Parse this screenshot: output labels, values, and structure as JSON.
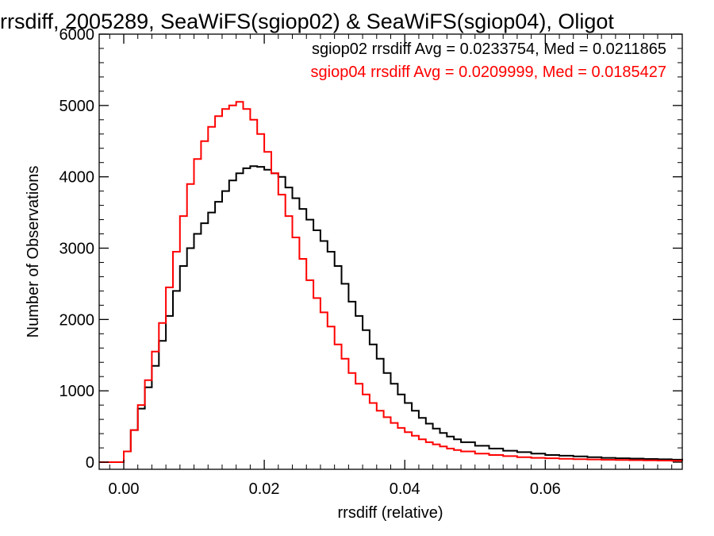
{
  "chart_data": {
    "type": "line",
    "title": "rrsdiff, 2005289, SeaWiFS(sgiop02) & SeaWiFS(sgiop04), Oligot",
    "xlabel": "rrsdiff (relative)",
    "ylabel": "Number of Observations",
    "xlim": [
      -0.0035,
      0.0795
    ],
    "ylim": [
      -100,
      6000
    ],
    "xticks": [
      0.0,
      0.02,
      0.04,
      0.06
    ],
    "xtick_labels": [
      "0.00",
      "0.02",
      "0.04",
      "0.06"
    ],
    "yticks": [
      0,
      1000,
      2000,
      3000,
      4000,
      5000,
      6000
    ],
    "ytick_labels": [
      "0",
      "1000",
      "2000",
      "3000",
      "4000",
      "5000",
      "6000"
    ],
    "grid": false,
    "legend_position": "top-right",
    "legend": [
      "sgiop02 rrsdiff Avg = 0.0233754, Med = 0.0211865",
      "sgiop04 rrsdiff Avg = 0.0209999, Med = 0.0185427"
    ],
    "series": [
      {
        "name": "sgiop02",
        "color": "#000000",
        "x": [
          -0.0035,
          -0.0005,
          0.0,
          0.001,
          0.002,
          0.003,
          0.004,
          0.005,
          0.006,
          0.007,
          0.008,
          0.009,
          0.01,
          0.011,
          0.012,
          0.013,
          0.014,
          0.015,
          0.016,
          0.017,
          0.018,
          0.019,
          0.02,
          0.021,
          0.022,
          0.023,
          0.024,
          0.025,
          0.026,
          0.027,
          0.028,
          0.029,
          0.03,
          0.031,
          0.032,
          0.033,
          0.034,
          0.035,
          0.036,
          0.037,
          0.038,
          0.039,
          0.04,
          0.041,
          0.042,
          0.043,
          0.044,
          0.045,
          0.046,
          0.047,
          0.048,
          0.05,
          0.052,
          0.054,
          0.056,
          0.058,
          0.06,
          0.062,
          0.064,
          0.066,
          0.068,
          0.07,
          0.072,
          0.074,
          0.076,
          0.078,
          0.0795
        ],
        "y": [
          0,
          0,
          150,
          450,
          750,
          1050,
          1350,
          1700,
          2050,
          2400,
          2750,
          3000,
          3200,
          3350,
          3500,
          3650,
          3800,
          3950,
          4050,
          4120,
          4150,
          4140,
          4100,
          4050,
          4000,
          3850,
          3700,
          3550,
          3400,
          3250,
          3100,
          2950,
          2750,
          2500,
          2250,
          2050,
          1850,
          1650,
          1450,
          1250,
          1100,
          950,
          830,
          720,
          620,
          540,
          470,
          410,
          360,
          320,
          280,
          230,
          190,
          160,
          140,
          120,
          100,
          90,
          80,
          70,
          60,
          55,
          50,
          45,
          40,
          35,
          30
        ]
      },
      {
        "name": "sgiop04",
        "color": "#ff0000",
        "x": [
          -0.0035,
          -0.0005,
          0.0,
          0.001,
          0.002,
          0.003,
          0.004,
          0.005,
          0.006,
          0.007,
          0.008,
          0.009,
          0.01,
          0.011,
          0.012,
          0.013,
          0.014,
          0.015,
          0.016,
          0.017,
          0.018,
          0.019,
          0.02,
          0.021,
          0.022,
          0.023,
          0.024,
          0.025,
          0.026,
          0.027,
          0.028,
          0.029,
          0.03,
          0.031,
          0.032,
          0.033,
          0.034,
          0.035,
          0.036,
          0.037,
          0.038,
          0.039,
          0.04,
          0.041,
          0.042,
          0.043,
          0.044,
          0.045,
          0.046,
          0.047,
          0.048,
          0.05,
          0.052,
          0.054,
          0.056,
          0.058,
          0.06,
          0.062,
          0.064,
          0.066,
          0.068,
          0.07,
          0.072,
          0.074,
          0.076,
          0.078,
          0.0795
        ],
        "y": [
          0,
          0,
          150,
          450,
          800,
          1150,
          1550,
          1950,
          2450,
          2950,
          3450,
          3900,
          4250,
          4500,
          4700,
          4850,
          4950,
          5000,
          5050,
          4950,
          4800,
          4600,
          4350,
          4050,
          3750,
          3450,
          3150,
          2850,
          2550,
          2300,
          2100,
          1900,
          1650,
          1450,
          1250,
          1100,
          950,
          830,
          720,
          630,
          550,
          480,
          420,
          370,
          320,
          280,
          250,
          220,
          190,
          170,
          150,
          120,
          100,
          85,
          70,
          60,
          55,
          48,
          42,
          38,
          34,
          30,
          28,
          25,
          22,
          20,
          18
        ]
      }
    ]
  }
}
